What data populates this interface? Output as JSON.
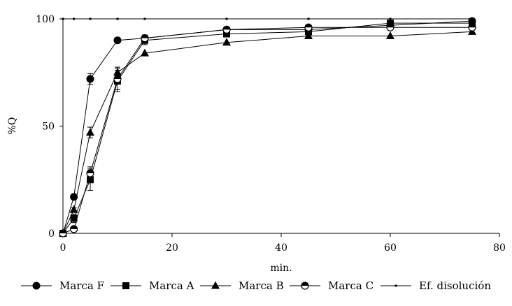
{
  "chart_data": {
    "type": "line",
    "title": "",
    "xlabel": "min.",
    "ylabel": "%Q",
    "xlim": [
      0,
      80
    ],
    "ylim": [
      0,
      100
    ],
    "x_ticks": [
      0,
      20,
      40,
      60,
      80
    ],
    "y_ticks": [
      0,
      50,
      100
    ],
    "x_tick_labels": [
      "0",
      "20",
      "40",
      "60",
      "80"
    ],
    "y_tick_labels": [
      "0",
      "50",
      "100"
    ],
    "grid": false,
    "legend_position": "bottom",
    "series": [
      {
        "name": "Marca F",
        "marker": "filled-circle",
        "color": "#000000",
        "x": [
          0,
          2,
          5,
          10,
          15,
          30,
          45,
          60,
          75
        ],
        "y": [
          0,
          17,
          72,
          90,
          91,
          95,
          95,
          97,
          99
        ],
        "err": [
          0,
          1,
          2.5,
          0,
          1,
          0,
          0,
          0,
          0
        ]
      },
      {
        "name": "Marca A",
        "marker": "filled-square",
        "color": "#000000",
        "x": [
          0,
          2,
          5,
          10,
          15,
          30,
          45,
          60,
          75
        ],
        "y": [
          0,
          7,
          25,
          71,
          90,
          93,
          94,
          98,
          98
        ],
        "err": [
          0,
          2,
          5,
          5,
          2,
          1,
          1,
          1,
          1
        ]
      },
      {
        "name": "Marca B",
        "marker": "filled-triangle",
        "color": "#000000",
        "x": [
          0,
          2,
          5,
          10,
          15,
          30,
          45,
          60,
          75
        ],
        "y": [
          0,
          11,
          47,
          75,
          84,
          89,
          92,
          92,
          94
        ],
        "err": [
          0,
          1,
          2.5,
          2.5,
          0,
          0,
          0,
          0,
          0
        ]
      },
      {
        "name": "Marca C",
        "marker": "half-circle",
        "color": "#000000",
        "x": [
          0,
          2,
          5,
          10,
          15,
          30,
          45,
          60,
          75
        ],
        "y": [
          0,
          2,
          28,
          72,
          91,
          95,
          96,
          96,
          96
        ],
        "err": [
          0,
          1,
          3,
          5,
          1.5,
          0,
          0,
          0,
          0
        ]
      },
      {
        "name": "Ef. disolución",
        "marker": "small-dot",
        "color": "#000000",
        "x": [
          0,
          2,
          5,
          10,
          15,
          30,
          45,
          60,
          75
        ],
        "y": [
          100,
          100,
          100,
          100,
          100,
          100,
          100,
          100,
          100
        ],
        "err": [
          0,
          0,
          0,
          0,
          0,
          0,
          0,
          0,
          0
        ]
      }
    ]
  }
}
